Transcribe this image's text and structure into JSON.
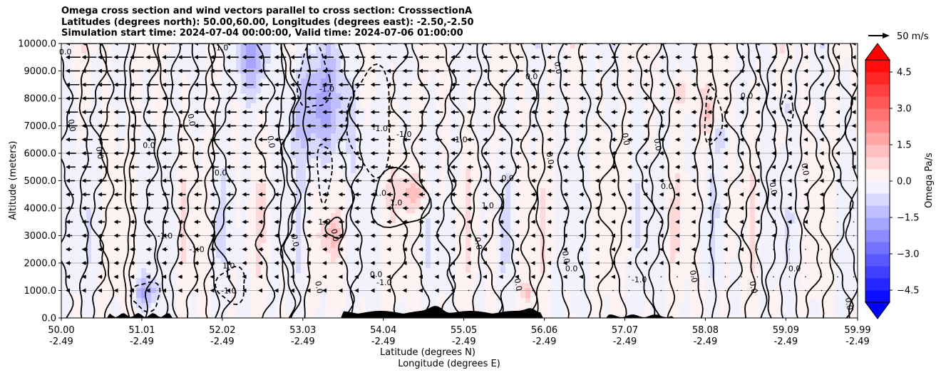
{
  "title_lines": [
    "Omega cross section and wind vectors parallel to cross section: CrosssectionA",
    "Latitudes (degrees north): 50.00,60.00, Longitudes (degrees east): -2.50,-2.50",
    "Simulation start time: 2024-07-04 00:00:00, Valid time: 2024-07-06 01:00:00"
  ],
  "chart_data": {
    "type": "heatmap",
    "title": "Omega cross section and wind vectors parallel to cross section: CrosssectionA",
    "ylabel": "Altitude (meters)",
    "xlabel_line1": "Latitude (degrees N)",
    "xlabel_line2": "Longitude (degrees E)",
    "ylim": [
      0,
      10000
    ],
    "y_ticks": [
      "0.0",
      "1000.0",
      "2000.0",
      "3000.0",
      "4000.0",
      "5000.0",
      "6000.0",
      "7000.0",
      "8000.0",
      "9000.0",
      "10000.0"
    ],
    "y_tick_values": [
      0,
      1000,
      2000,
      3000,
      4000,
      5000,
      6000,
      7000,
      8000,
      9000,
      10000
    ],
    "x_ticks_lat": [
      "50.00",
      "51.01",
      "52.02",
      "53.03",
      "54.04",
      "55.05",
      "56.06",
      "57.07",
      "58.08",
      "59.09",
      "59.99"
    ],
    "x_ticks_lon": [
      "-2.49",
      "-2.49",
      "-2.49",
      "-2.49",
      "-2.49",
      "-2.49",
      "-2.49",
      "-2.49",
      "-2.49",
      "-2.49",
      "-2.49"
    ],
    "x_tick_values": [
      50.0,
      51.01,
      52.02,
      53.03,
      54.04,
      55.05,
      56.06,
      57.07,
      58.08,
      59.09,
      59.99
    ],
    "xlim": [
      50.0,
      59.99
    ],
    "grid": true,
    "colorbar": {
      "label": "Omega Pa/s",
      "ticks": [
        "4.5",
        "3.0",
        "1.5",
        "0.0",
        "−1.5",
        "−3.0",
        "−4.5"
      ],
      "tick_values": [
        4.5,
        3.0,
        1.5,
        0.0,
        -1.5,
        -3.0,
        -4.5
      ],
      "range": [
        -5,
        5
      ],
      "levels": 20,
      "extend": "both",
      "cmap": "bwr"
    },
    "quiver_key": {
      "label": "50 m/s",
      "value": 50
    },
    "contour_levels": [
      -1.0,
      0.0,
      1.0
    ],
    "contour_labels": [
      {
        "text": "-1.0",
        "lat": 52.0,
        "alt": 9750
      },
      {
        "text": "-1.0",
        "lat": 53.33,
        "alt": 8250
      },
      {
        "text": "-1.0",
        "lat": 54.0,
        "alt": 6800
      },
      {
        "text": "-1.0",
        "lat": 54.3,
        "alt": 6600
      },
      {
        "text": "-1.0",
        "lat": 55.0,
        "alt": 6400
      },
      {
        "text": "1.0",
        "lat": 54.0,
        "alt": 4450
      },
      {
        "text": "1.0",
        "lat": 54.2,
        "alt": 4100
      },
      {
        "text": "1.0",
        "lat": 55.35,
        "alt": 4000
      },
      {
        "text": "1.0",
        "lat": 53.3,
        "alt": 3400
      },
      {
        "text": "-1.0",
        "lat": 51.3,
        "alt": 2900
      },
      {
        "text": "-1.0",
        "lat": 51.7,
        "alt": 2400
      },
      {
        "text": "1.0",
        "lat": 52.1,
        "alt": 1800
      },
      {
        "text": "-1.0",
        "lat": 52.1,
        "alt": 900
      },
      {
        "text": "-1.0",
        "lat": 54.05,
        "alt": 1200
      },
      {
        "text": "-1.0",
        "lat": 57.25,
        "alt": 1300
      },
      {
        "text": "0.0",
        "lat": 50.05,
        "alt": 9600
      },
      {
        "text": "0.0",
        "lat": 50.1,
        "alt": 7000
      },
      {
        "text": "0.0",
        "lat": 50.45,
        "alt": 6000
      },
      {
        "text": "0.0",
        "lat": 51.1,
        "alt": 6200
      },
      {
        "text": "0.0",
        "lat": 51.6,
        "alt": 7200
      },
      {
        "text": "0.0",
        "lat": 52.6,
        "alt": 6400
      },
      {
        "text": "0.0",
        "lat": 52.0,
        "alt": 5200
      },
      {
        "text": "0.0",
        "lat": 53.4,
        "alt": 3000
      },
      {
        "text": "0.0",
        "lat": 52.9,
        "alt": 2800
      },
      {
        "text": "0.0",
        "lat": 55.9,
        "alt": 8700
      },
      {
        "text": "0.0",
        "lat": 56.2,
        "alt": 9100
      },
      {
        "text": "0.0",
        "lat": 56.1,
        "alt": 5800
      },
      {
        "text": "0.0",
        "lat": 55.6,
        "alt": 5000
      },
      {
        "text": "0.0",
        "lat": 57.05,
        "alt": 6500
      },
      {
        "text": "0.0",
        "lat": 57.45,
        "alt": 6300
      },
      {
        "text": "0.0",
        "lat": 58.6,
        "alt": 8000
      },
      {
        "text": "0.0",
        "lat": 59.3,
        "alt": 5400
      },
      {
        "text": "0.0",
        "lat": 58.9,
        "alt": 4700
      },
      {
        "text": "0.0",
        "lat": 57.6,
        "alt": 4700
      },
      {
        "text": "0.0",
        "lat": 56.3,
        "alt": 2200
      },
      {
        "text": "0.0",
        "lat": 55.2,
        "alt": 2700
      },
      {
        "text": "0.0",
        "lat": 53.95,
        "alt": 1500
      },
      {
        "text": "0.0",
        "lat": 53.2,
        "alt": 1100
      },
      {
        "text": "0.0",
        "lat": 55.7,
        "alt": 1200
      },
      {
        "text": "0.0",
        "lat": 56.4,
        "alt": 1700
      },
      {
        "text": "0.0",
        "lat": 57.9,
        "alt": 1500
      },
      {
        "text": "0.0",
        "lat": 58.65,
        "alt": 1100
      },
      {
        "text": "0.0",
        "lat": 59.2,
        "alt": 1700
      },
      {
        "text": "0.0",
        "lat": 59.85,
        "alt": 500
      }
    ]
  }
}
